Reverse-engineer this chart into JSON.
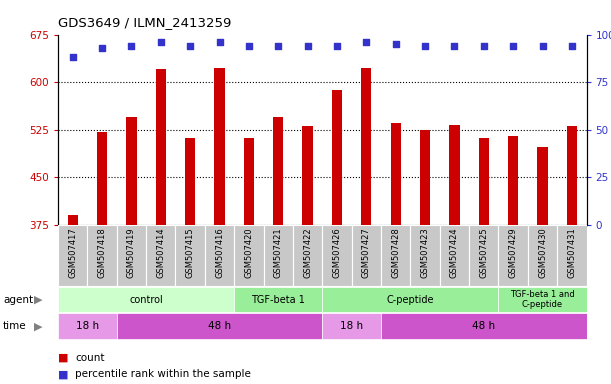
{
  "title": "GDS3649 / ILMN_2413259",
  "samples": [
    "GSM507417",
    "GSM507418",
    "GSM507419",
    "GSM507414",
    "GSM507415",
    "GSM507416",
    "GSM507420",
    "GSM507421",
    "GSM507422",
    "GSM507426",
    "GSM507427",
    "GSM507428",
    "GSM507423",
    "GSM507424",
    "GSM507425",
    "GSM507429",
    "GSM507430",
    "GSM507431"
  ],
  "counts": [
    390,
    522,
    545,
    620,
    512,
    622,
    512,
    545,
    530,
    588,
    622,
    535,
    525,
    533,
    512,
    515,
    498,
    530
  ],
  "percentile_ranks_pct": [
    88,
    93,
    94,
    96,
    94,
    96,
    94,
    94,
    94,
    94,
    96,
    95,
    94,
    94,
    94,
    94,
    94,
    94
  ],
  "ylim_left": [
    375,
    675
  ],
  "ylim_right": [
    0,
    100
  ],
  "yticks_left": [
    375,
    450,
    525,
    600,
    675
  ],
  "yticks_right": [
    0,
    25,
    50,
    75,
    100
  ],
  "bar_color": "#cc0000",
  "dot_color": "#3333cc",
  "grid_color": "#000000",
  "agent_groups": [
    {
      "label": "control",
      "start": 0,
      "end": 6
    },
    {
      "label": "TGF-beta 1",
      "start": 6,
      "end": 9
    },
    {
      "label": "C-peptide",
      "start": 9,
      "end": 15
    },
    {
      "label": "TGF-beta 1 and\nC-peptide",
      "start": 15,
      "end": 18
    }
  ],
  "time_groups": [
    {
      "label": "18 h",
      "start": 0,
      "end": 2
    },
    {
      "label": "48 h",
      "start": 2,
      "end": 9
    },
    {
      "label": "18 h",
      "start": 9,
      "end": 11
    },
    {
      "label": "48 h",
      "start": 11,
      "end": 18
    }
  ],
  "agent_color_light": "#ccffcc",
  "agent_color_dark": "#99ee99",
  "time_color_light": "#e699e6",
  "time_color_dark": "#cc55cc",
  "legend_count_color": "#cc0000",
  "legend_dot_color": "#3333cc",
  "bg_color": "#ffffff",
  "axis_tick_color_left": "#cc0000",
  "axis_tick_color_right": "#3333cc",
  "sample_bg_color": "#c8c8c8",
  "sample_border_color": "#ffffff"
}
